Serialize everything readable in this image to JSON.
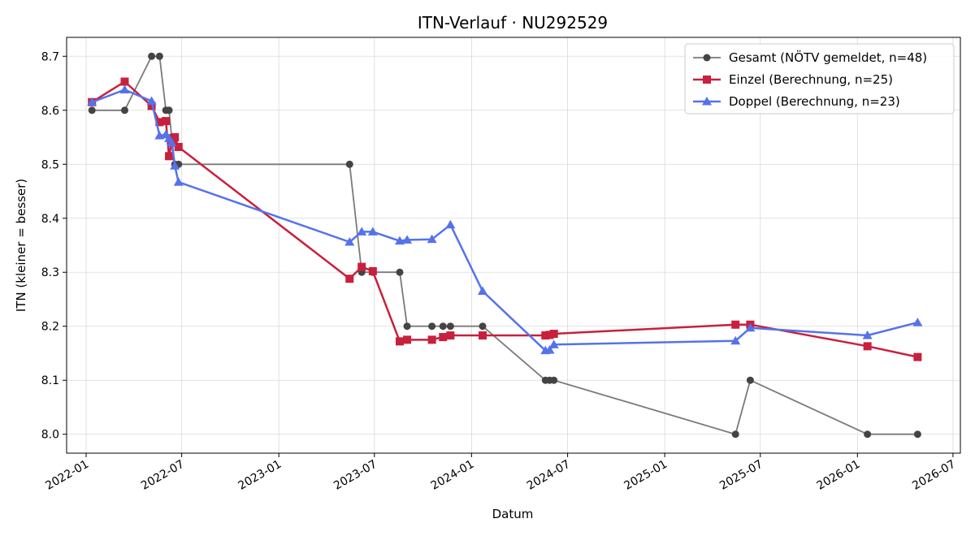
{
  "chart_data": {
    "type": "line",
    "title": "ITN-Verlauf · NU292529",
    "xlabel": "Datum",
    "ylabel": "ITN  (kleiner = besser)",
    "xlim": [
      "2021-11-25",
      "2026-07-15"
    ],
    "ylim": [
      7.965,
      8.735
    ],
    "x_ticks": [
      "2022-01",
      "2022-07",
      "2023-01",
      "2023-07",
      "2024-01",
      "2024-07",
      "2025-01",
      "2025-07",
      "2026-01",
      "2026-07"
    ],
    "y_ticks": [
      8.0,
      8.1,
      8.2,
      8.3,
      8.4,
      8.5,
      8.6,
      8.7
    ],
    "y_tick_labels": [
      "8.0",
      "8.1",
      "8.2",
      "8.3",
      "8.4",
      "8.5",
      "8.6",
      "8.7"
    ],
    "grid": true,
    "legend_position": "top-right",
    "series": [
      {
        "name": "Gesamt (NÖTV gemeldet, n=48)",
        "color": "#444444",
        "line_color": "#7a7a7a",
        "marker": "circle",
        "points": [
          {
            "x": "2022-01-12",
            "y": 8.6
          },
          {
            "x": "2022-03-15",
            "y": 8.6
          },
          {
            "x": "2022-05-05",
            "y": 8.7
          },
          {
            "x": "2022-05-20",
            "y": 8.7
          },
          {
            "x": "2022-06-01",
            "y": 8.6
          },
          {
            "x": "2022-06-07",
            "y": 8.6
          },
          {
            "x": "2022-06-12",
            "y": 8.55
          },
          {
            "x": "2022-06-18",
            "y": 8.5
          },
          {
            "x": "2022-06-25",
            "y": 8.5
          },
          {
            "x": "2023-05-15",
            "y": 8.5
          },
          {
            "x": "2023-06-07",
            "y": 8.3
          },
          {
            "x": "2023-06-28",
            "y": 8.3
          },
          {
            "x": "2023-08-18",
            "y": 8.3
          },
          {
            "x": "2023-09-01",
            "y": 8.2
          },
          {
            "x": "2023-10-18",
            "y": 8.2
          },
          {
            "x": "2023-11-08",
            "y": 8.2
          },
          {
            "x": "2023-11-22",
            "y": 8.2
          },
          {
            "x": "2024-01-22",
            "y": 8.2
          },
          {
            "x": "2024-05-20",
            "y": 8.1
          },
          {
            "x": "2024-05-28",
            "y": 8.1
          },
          {
            "x": "2024-06-05",
            "y": 8.1
          },
          {
            "x": "2025-05-15",
            "y": 8.0
          },
          {
            "x": "2025-06-12",
            "y": 8.1
          },
          {
            "x": "2026-01-20",
            "y": 8.0
          },
          {
            "x": "2026-04-25",
            "y": 8.0
          }
        ]
      },
      {
        "name": "Einzel (Berechnung, n=25)",
        "color": "#c8203d",
        "line_color": "#c8203d",
        "marker": "square",
        "points": [
          {
            "x": "2022-01-12",
            "y": 8.615
          },
          {
            "x": "2022-03-15",
            "y": 8.653
          },
          {
            "x": "2022-05-05",
            "y": 8.608
          },
          {
            "x": "2022-05-20",
            "y": 8.578
          },
          {
            "x": "2022-06-01",
            "y": 8.58
          },
          {
            "x": "2022-06-07",
            "y": 8.515
          },
          {
            "x": "2022-06-12",
            "y": 8.54
          },
          {
            "x": "2022-06-18",
            "y": 8.55
          },
          {
            "x": "2022-06-25",
            "y": 8.532
          },
          {
            "x": "2023-05-15",
            "y": 8.288
          },
          {
            "x": "2023-06-07",
            "y": 8.31
          },
          {
            "x": "2023-06-28",
            "y": 8.302
          },
          {
            "x": "2023-08-18",
            "y": 8.172
          },
          {
            "x": "2023-09-01",
            "y": 8.175
          },
          {
            "x": "2023-10-18",
            "y": 8.175
          },
          {
            "x": "2023-11-08",
            "y": 8.18
          },
          {
            "x": "2023-11-22",
            "y": 8.183
          },
          {
            "x": "2024-01-22",
            "y": 8.183
          },
          {
            "x": "2024-05-20",
            "y": 8.183
          },
          {
            "x": "2024-05-28",
            "y": 8.184
          },
          {
            "x": "2024-06-05",
            "y": 8.186
          },
          {
            "x": "2025-05-15",
            "y": 8.203
          },
          {
            "x": "2025-06-12",
            "y": 8.203
          },
          {
            "x": "2026-01-20",
            "y": 8.163
          },
          {
            "x": "2026-04-25",
            "y": 8.143
          }
        ]
      },
      {
        "name": "Doppel (Berechnung, n=23)",
        "color": "#5572ec",
        "line_color": "#5572ec",
        "marker": "triangle",
        "points": [
          {
            "x": "2022-01-12",
            "y": 8.615
          },
          {
            "x": "2022-03-15",
            "y": 8.638
          },
          {
            "x": "2022-05-05",
            "y": 8.617
          },
          {
            "x": "2022-05-20",
            "y": 8.553
          },
          {
            "x": "2022-06-01",
            "y": 8.555
          },
          {
            "x": "2022-06-07",
            "y": 8.548
          },
          {
            "x": "2022-06-12",
            "y": 8.54
          },
          {
            "x": "2022-06-18",
            "y": 8.497
          },
          {
            "x": "2022-06-25",
            "y": 8.467
          },
          {
            "x": "2023-05-15",
            "y": 8.356
          },
          {
            "x": "2023-06-07",
            "y": 8.375
          },
          {
            "x": "2023-06-28",
            "y": 8.375
          },
          {
            "x": "2023-08-18",
            "y": 8.358
          },
          {
            "x": "2023-09-01",
            "y": 8.36
          },
          {
            "x": "2023-10-18",
            "y": 8.361
          },
          {
            "x": "2023-11-22",
            "y": 8.388
          },
          {
            "x": "2024-01-22",
            "y": 8.265
          },
          {
            "x": "2024-05-20",
            "y": 8.155
          },
          {
            "x": "2024-05-28",
            "y": 8.156
          },
          {
            "x": "2024-06-05",
            "y": 8.166
          },
          {
            "x": "2025-05-15",
            "y": 8.173
          },
          {
            "x": "2025-06-12",
            "y": 8.197
          },
          {
            "x": "2026-01-20",
            "y": 8.183
          },
          {
            "x": "2026-04-25",
            "y": 8.207
          }
        ]
      }
    ]
  }
}
